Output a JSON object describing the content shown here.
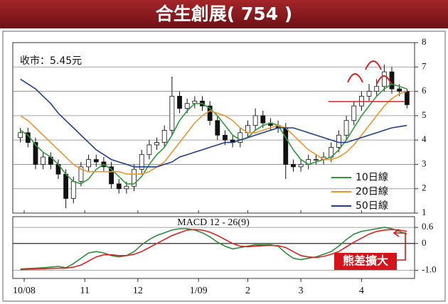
{
  "title": "合生創展( 754 )",
  "chart_data": [
    {
      "type": "candlestick",
      "close_label": "收市：5.45元",
      "xlim": [
        -1,
        52
      ],
      "ylim": [
        1,
        8
      ],
      "yticks": [
        1,
        2,
        3,
        4,
        5,
        6,
        7,
        8
      ],
      "grid": true,
      "legend": "bottom-right",
      "up_color": "#ffffff",
      "down_color": "#111111",
      "open": [
        4.1,
        4.3,
        3.9,
        3.0,
        3.3,
        3.0,
        2.6,
        1.6,
        2.3,
        2.9,
        3.2,
        3.1,
        2.9,
        2.2,
        2.0,
        2.1,
        2.8,
        3.4,
        3.8,
        3.9,
        4.4,
        5.8,
        5.3,
        5.5,
        5.6,
        5.4,
        4.8,
        4.2,
        4.0,
        3.9,
        4.3,
        4.6,
        5.0,
        4.7,
        4.6,
        4.5,
        3.0,
        2.9,
        3.0,
        3.2,
        3.2,
        3.3,
        3.7,
        4.2,
        4.8,
        5.4,
        5.8,
        6.0,
        6.2,
        6.8,
        6.1,
        6.0
      ],
      "high": [
        4.5,
        4.5,
        4.1,
        3.5,
        3.5,
        3.2,
        2.8,
        2.5,
        3.1,
        3.4,
        3.4,
        3.3,
        3.1,
        2.4,
        2.3,
        3.0,
        3.6,
        4.0,
        4.1,
        4.6,
        6.6,
        6.0,
        5.7,
        5.8,
        5.8,
        5.6,
        5.0,
        4.4,
        4.2,
        4.5,
        4.8,
        5.3,
        5.2,
        4.9,
        4.8,
        4.7,
        3.2,
        3.2,
        3.4,
        3.4,
        3.5,
        3.9,
        4.4,
        5.0,
        5.6,
        6.0,
        6.3,
        6.5,
        7.1,
        7.0,
        6.3,
        6.1
      ],
      "low": [
        3.9,
        3.7,
        2.8,
        2.8,
        2.8,
        2.4,
        1.2,
        1.4,
        2.1,
        2.7,
        2.9,
        2.7,
        2.0,
        1.8,
        1.8,
        1.9,
        2.6,
        3.2,
        3.6,
        3.7,
        4.2,
        5.1,
        5.1,
        5.3,
        5.2,
        4.6,
        4.0,
        3.8,
        3.7,
        3.7,
        4.1,
        4.4,
        4.5,
        4.4,
        4.3,
        2.4,
        2.7,
        2.7,
        2.8,
        3.0,
        3.0,
        3.1,
        3.5,
        4.0,
        4.6,
        5.2,
        5.6,
        5.8,
        6.0,
        5.9,
        5.8,
        5.3
      ],
      "close": [
        4.3,
        3.9,
        3.0,
        3.3,
        3.0,
        2.6,
        1.6,
        2.3,
        2.9,
        3.2,
        3.1,
        2.9,
        2.2,
        2.0,
        2.1,
        2.8,
        3.4,
        3.8,
        3.9,
        4.4,
        5.8,
        5.3,
        5.5,
        5.6,
        5.4,
        4.8,
        4.2,
        4.0,
        3.9,
        4.3,
        4.6,
        5.0,
        4.7,
        4.6,
        4.5,
        3.0,
        2.9,
        3.0,
        3.2,
        3.2,
        3.3,
        3.7,
        4.2,
        4.8,
        5.4,
        5.8,
        6.0,
        6.2,
        6.8,
        6.1,
        6.0,
        5.45
      ],
      "series": [
        {
          "name": "10日線",
          "color": "#2e9a3a",
          "values": [
            4.4,
            4.2,
            3.8,
            3.5,
            3.3,
            3.0,
            2.6,
            2.3,
            2.2,
            2.4,
            2.8,
            3.0,
            2.8,
            2.5,
            2.2,
            2.2,
            2.5,
            3.0,
            3.4,
            3.7,
            4.2,
            4.8,
            5.2,
            5.5,
            5.5,
            5.3,
            5.0,
            4.6,
            4.2,
            4.0,
            4.1,
            4.4,
            4.6,
            4.7,
            4.6,
            4.1,
            3.6,
            3.2,
            3.0,
            3.1,
            3.2,
            3.3,
            3.6,
            4.0,
            4.5,
            5.0,
            5.4,
            5.8,
            6.1,
            6.3,
            6.2,
            6.1
          ]
        },
        {
          "name": "20日線",
          "color": "#f0932b",
          "values": [
            5.0,
            4.8,
            4.5,
            4.2,
            3.9,
            3.6,
            3.3,
            3.0,
            2.8,
            2.7,
            2.7,
            2.7,
            2.7,
            2.7,
            2.6,
            2.6,
            2.6,
            2.7,
            2.9,
            3.1,
            3.5,
            3.9,
            4.3,
            4.7,
            5.0,
            5.2,
            5.1,
            5.0,
            4.8,
            4.5,
            4.3,
            4.3,
            4.4,
            4.5,
            4.6,
            4.5,
            4.2,
            3.9,
            3.6,
            3.4,
            3.2,
            3.2,
            3.3,
            3.5,
            3.8,
            4.2,
            4.6,
            5.0,
            5.4,
            5.7,
            5.9,
            6.0
          ]
        },
        {
          "name": "50日線",
          "color": "#1f3f8f",
          "values": [
            6.5,
            6.3,
            6.1,
            5.8,
            5.5,
            5.1,
            4.8,
            4.5,
            4.2,
            3.9,
            3.6,
            3.4,
            3.2,
            3.1,
            3.0,
            2.9,
            2.9,
            2.9,
            2.9,
            3.0,
            3.1,
            3.3,
            3.4,
            3.5,
            3.6,
            3.7,
            3.8,
            3.9,
            3.9,
            4.0,
            4.1,
            4.2,
            4.3,
            4.4,
            4.5,
            4.5,
            4.5,
            4.4,
            4.3,
            4.2,
            4.1,
            4.0,
            3.9,
            3.9,
            4.0,
            4.1,
            4.2,
            4.3,
            4.4,
            4.5,
            4.55,
            4.6
          ]
        }
      ]
    },
    {
      "type": "line",
      "title": "MACD 12 - 26(9)",
      "annotation": "熊差擴大",
      "xlim": [
        -1,
        52
      ],
      "xticks": [
        {
          "value": 0.5,
          "label": "10/08"
        },
        {
          "value": 8.5,
          "label": "11"
        },
        {
          "value": 15.5,
          "label": "12"
        },
        {
          "value": 23.5,
          "label": "1/09"
        },
        {
          "value": 30,
          "label": "2"
        },
        {
          "value": 37,
          "label": "3"
        },
        {
          "value": 45,
          "label": "4"
        }
      ],
      "ylim": [
        -1.3,
        1.0
      ],
      "yticks": [
        0.6,
        0,
        {
          "value": -1,
          "label": "-1.0"
        }
      ],
      "grid": true,
      "series": [
        {
          "color": "#2e8b3a",
          "values": [
            -0.95,
            -0.93,
            -0.92,
            -0.9,
            -0.88,
            -0.85,
            -0.9,
            -0.75,
            -0.55,
            -0.35,
            -0.3,
            -0.35,
            -0.45,
            -0.5,
            -0.45,
            -0.3,
            -0.05,
            0.15,
            0.3,
            0.4,
            0.5,
            0.55,
            0.55,
            0.5,
            0.4,
            0.25,
            0.05,
            -0.1,
            -0.2,
            -0.15,
            -0.1,
            -0.05,
            -0.05,
            -0.05,
            -0.1,
            -0.35,
            -0.55,
            -0.6,
            -0.55,
            -0.5,
            -0.4,
            -0.3,
            -0.1,
            0.15,
            0.35,
            0.45,
            0.5,
            0.55,
            0.6,
            0.55,
            0.45,
            0.35
          ]
        },
        {
          "color": "#e02020",
          "values": [
            -0.97,
            -0.96,
            -0.95,
            -0.94,
            -0.93,
            -0.92,
            -0.92,
            -0.88,
            -0.8,
            -0.65,
            -0.5,
            -0.42,
            -0.42,
            -0.45,
            -0.45,
            -0.4,
            -0.3,
            -0.15,
            0.0,
            0.15,
            0.3,
            0.4,
            0.5,
            0.52,
            0.5,
            0.42,
            0.3,
            0.15,
            0.0,
            -0.1,
            -0.12,
            -0.1,
            -0.08,
            -0.07,
            -0.08,
            -0.15,
            -0.3,
            -0.45,
            -0.5,
            -0.52,
            -0.48,
            -0.4,
            -0.3,
            -0.12,
            0.05,
            0.2,
            0.35,
            0.45,
            0.5,
            0.52,
            0.5,
            0.45
          ]
        }
      ]
    }
  ]
}
